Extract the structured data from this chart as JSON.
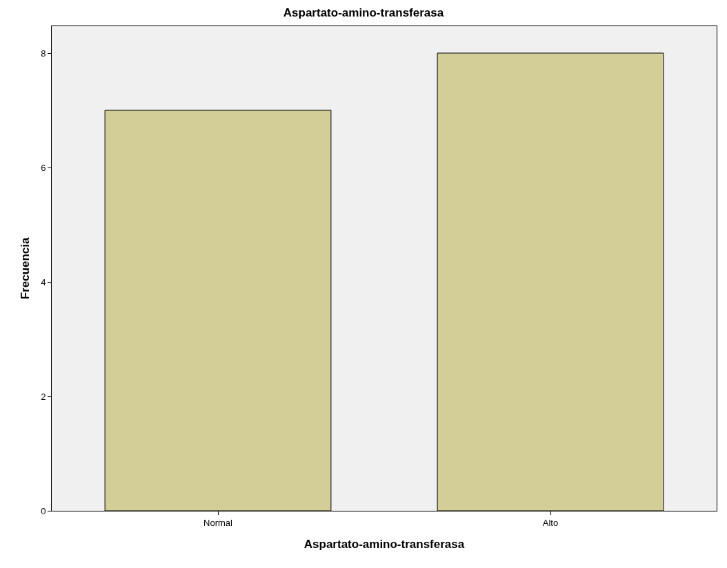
{
  "chart_data": {
    "type": "bar",
    "title": "Aspartato-amino-transferasa",
    "xlabel": "Aspartato-amino-transferasa",
    "ylabel": "Frecuencia",
    "categories": [
      "Normal",
      "Alto"
    ],
    "values": [
      7,
      8
    ],
    "color": "#d3ce97",
    "ylim": [
      0,
      8.47
    ],
    "yticks": [
      0,
      2,
      4,
      6,
      8
    ],
    "grid": false
  }
}
